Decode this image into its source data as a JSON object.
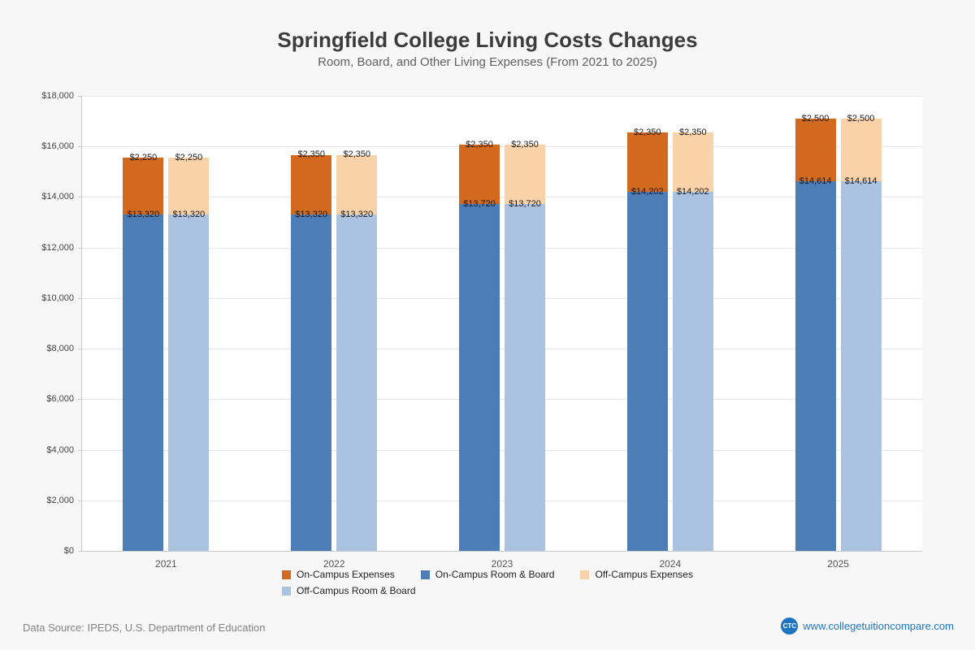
{
  "header": {
    "title": "Springfield College Living Costs Changes",
    "subtitle": "Room, Board, and Other Living Expenses (From 2021 to 2025)"
  },
  "chart_data": {
    "type": "bar",
    "stacked": true,
    "title": "Springfield College Living Costs Changes",
    "subtitle": "Room, Board, and Other Living Expenses (From 2021 to 2025)",
    "categories": [
      "2021",
      "2022",
      "2023",
      "2024",
      "2025"
    ],
    "ylim": [
      0,
      18000
    ],
    "ytick_step": 2000,
    "ytick_labels": [
      "$0",
      "$2,000",
      "$4,000",
      "$6,000",
      "$8,000",
      "$10,000",
      "$12,000",
      "$14,000",
      "$16,000",
      "$18,000"
    ],
    "grid": true,
    "series": [
      {
        "name": "On-Campus Expenses",
        "color": "#d2691e",
        "values": [
          2250,
          2350,
          2350,
          2350,
          2500
        ]
      },
      {
        "name": "On-Campus Room & Board",
        "color": "#4d7db7",
        "values": [
          13320,
          13320,
          13720,
          14202,
          14614
        ]
      },
      {
        "name": "Off-Campus Expenses",
        "color": "#fad2a9",
        "values": [
          2250,
          2350,
          2350,
          2350,
          2500
        ]
      },
      {
        "name": "Off-Campus Room & Board",
        "color": "#abc3e1",
        "values": [
          13320,
          13320,
          13720,
          14202,
          14614
        ]
      }
    ],
    "bars": [
      {
        "name": "on-campus",
        "stack": [
          "On-Campus Room & Board",
          "On-Campus Expenses"
        ]
      },
      {
        "name": "off-campus",
        "stack": [
          "Off-Campus Room & Board",
          "Off-Campus Expenses"
        ]
      }
    ],
    "legend_rows": [
      [
        "On-Campus Expenses",
        "On-Campus Room & Board",
        "Off-Campus Expenses"
      ],
      [
        "Off-Campus Room & Board"
      ]
    ],
    "legend_position": "bottom"
  },
  "footer": {
    "source": "Data Source: IPEDS, U.S. Department of Education",
    "logo_text": "CTC",
    "website": "www.collegetuitioncompare.com"
  }
}
